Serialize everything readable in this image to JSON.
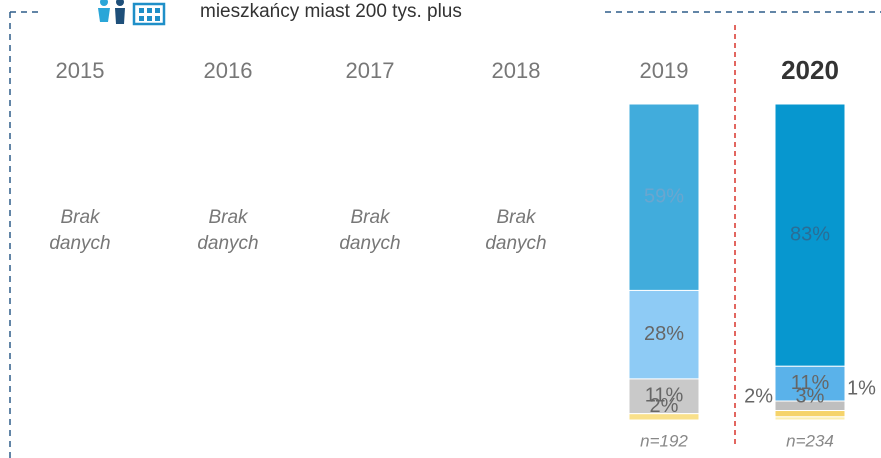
{
  "chart_data": {
    "type": "stacked_bar",
    "title": "mieszkańcy miast 200 tys. plus",
    "categories": [
      "2015",
      "2016",
      "2017",
      "2018",
      "2019",
      "2020"
    ],
    "no_data_label": "Brak danych",
    "sample_labels": [
      null,
      null,
      null,
      null,
      "n=192",
      "n=234"
    ],
    "ylim": [
      0,
      100
    ],
    "series": [
      {
        "colors": [
          null,
          null,
          null,
          null,
          "#41acdc",
          "#0797cf"
        ],
        "values": [
          null,
          null,
          null,
          null,
          59,
          83
        ],
        "value_labels": [
          null,
          null,
          null,
          null,
          "59%",
          "83%"
        ]
      },
      {
        "colors": [
          null,
          null,
          null,
          null,
          "#8ecbf5",
          "#5ab2ea"
        ],
        "values": [
          null,
          null,
          null,
          null,
          28,
          11
        ],
        "value_labels": [
          null,
          null,
          null,
          null,
          "28%",
          "11%"
        ]
      },
      {
        "colors": [
          null,
          null,
          null,
          null,
          "#c9c9c9",
          "#bfbfbf"
        ],
        "values": [
          null,
          null,
          null,
          null,
          11,
          3
        ],
        "value_labels": [
          null,
          null,
          null,
          null,
          "11%",
          "3%"
        ]
      },
      {
        "colors": [
          null,
          null,
          null,
          null,
          "#f9e08a",
          "#f5d36a"
        ],
        "values": [
          null,
          null,
          null,
          null,
          2,
          2
        ],
        "value_labels": [
          null,
          null,
          null,
          null,
          "2%",
          "2%"
        ]
      },
      {
        "colors": [
          null,
          null,
          null,
          null,
          null,
          "#fbeeb0"
        ],
        "values": [
          null,
          null,
          null,
          null,
          null,
          1
        ],
        "value_labels": [
          null,
          null,
          null,
          null,
          null,
          "1%"
        ]
      }
    ]
  }
}
